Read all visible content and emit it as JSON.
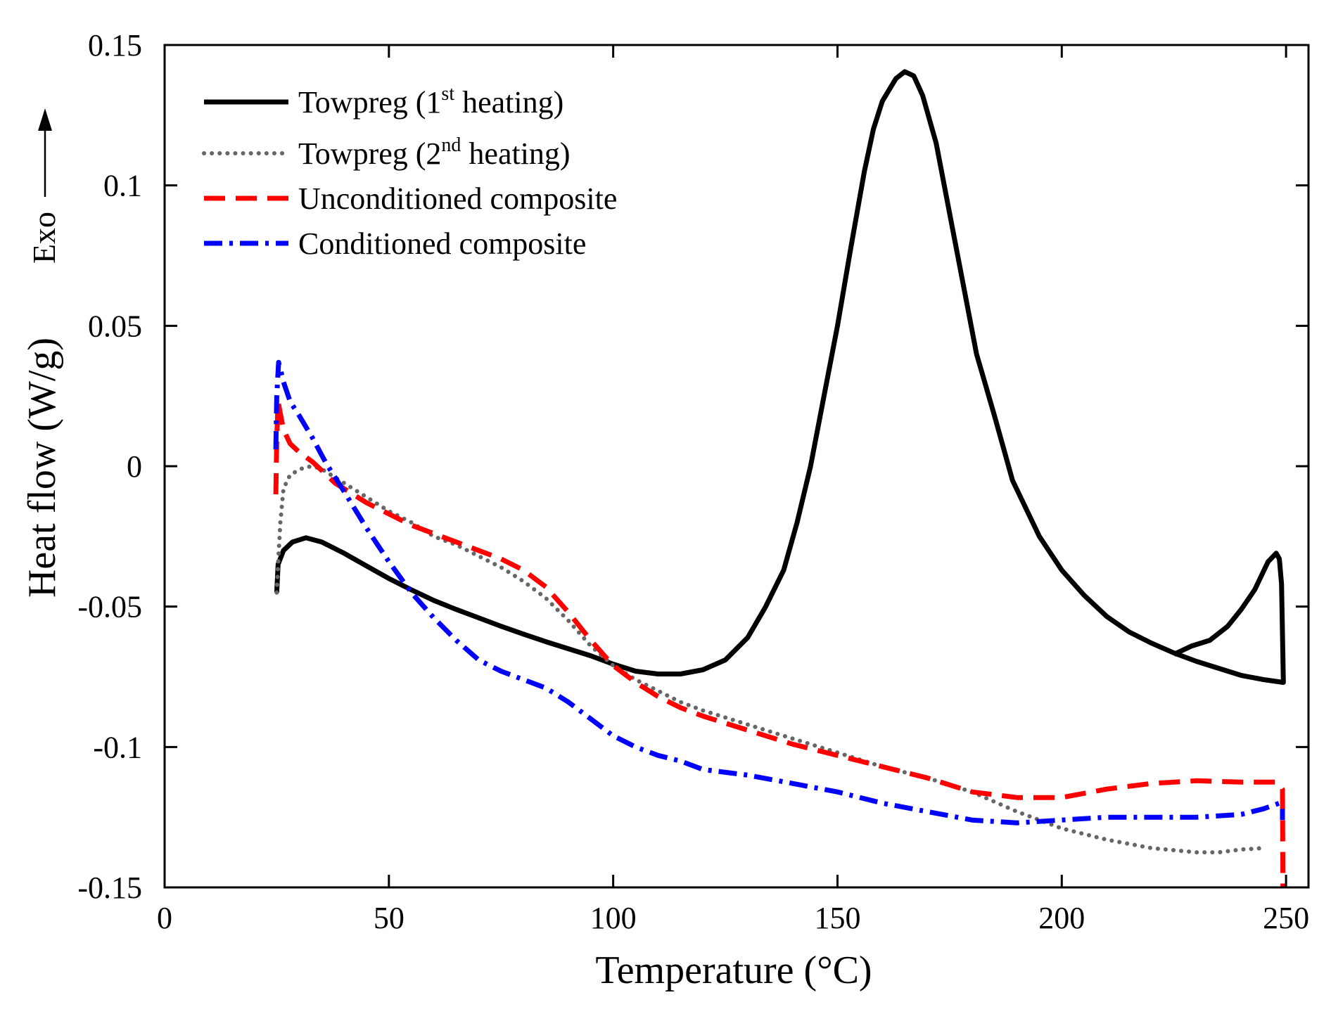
{
  "chart_data": {
    "type": "line",
    "xlabel": "Temperature (°C)",
    "ylabel": "Heat flow (W/g)",
    "exo_label": "Exo",
    "xlim": [
      0,
      255
    ],
    "ylim": [
      -0.15,
      0.15
    ],
    "xticks": [
      0,
      50,
      100,
      150,
      200,
      250
    ],
    "xtick_labels": [
      "0",
      "50",
      "100",
      "150",
      "200",
      "250"
    ],
    "yticks": [
      -0.15,
      -0.1,
      -0.05,
      0,
      0.05,
      0.1,
      0.15
    ],
    "ytick_labels": [
      "-0.15",
      "-0.1",
      "-0.05",
      "0",
      "0.05",
      "0.1",
      "0.15"
    ],
    "grid": false,
    "legend_position": "top-left",
    "series": [
      {
        "name": "Towpreg (1st heating)",
        "legend_main": "Towpreg  (1",
        "legend_sup": "st",
        "legend_tail": " heating)",
        "color": "#000000",
        "style": "solid",
        "points": [
          [
            25.0,
            -0.045
          ],
          [
            25.3,
            -0.035
          ],
          [
            26.5,
            -0.03
          ],
          [
            28.5,
            -0.027
          ],
          [
            31.5,
            -0.0255
          ],
          [
            35,
            -0.027
          ],
          [
            40,
            -0.031
          ],
          [
            45,
            -0.0355
          ],
          [
            50,
            -0.04
          ],
          [
            55,
            -0.044
          ],
          [
            60,
            -0.0478
          ],
          [
            65,
            -0.051
          ],
          [
            70,
            -0.054
          ],
          [
            75,
            -0.057
          ],
          [
            80,
            -0.0598
          ],
          [
            85,
            -0.0625
          ],
          [
            90,
            -0.065
          ],
          [
            95,
            -0.0675
          ],
          [
            100,
            -0.0705
          ],
          [
            105,
            -0.073
          ],
          [
            110,
            -0.074
          ],
          [
            115,
            -0.074
          ],
          [
            120,
            -0.0725
          ],
          [
            125,
            -0.069
          ],
          [
            130,
            -0.061
          ],
          [
            134,
            -0.05
          ],
          [
            138,
            -0.037
          ],
          [
            141,
            -0.02
          ],
          [
            144,
            0.0
          ],
          [
            147,
            0.025
          ],
          [
            150,
            0.05
          ],
          [
            153,
            0.078
          ],
          [
            156,
            0.105
          ],
          [
            158,
            0.12
          ],
          [
            160,
            0.13
          ],
          [
            163,
            0.138
          ],
          [
            165,
            0.1405
          ],
          [
            167,
            0.139
          ],
          [
            169,
            0.132
          ],
          [
            172,
            0.115
          ],
          [
            175,
            0.09
          ],
          [
            178,
            0.065
          ],
          [
            181,
            0.04
          ],
          [
            185,
            0.018
          ],
          [
            189,
            -0.005
          ],
          [
            195,
            -0.025
          ],
          [
            200,
            -0.037
          ],
          [
            205,
            -0.046
          ],
          [
            210,
            -0.0535
          ],
          [
            215,
            -0.059
          ],
          [
            220,
            -0.063
          ],
          [
            225,
            -0.0665
          ],
          [
            230,
            -0.0695
          ],
          [
            235,
            -0.072
          ],
          [
            240,
            -0.0745
          ],
          [
            245,
            -0.076
          ],
          [
            249.4,
            -0.077
          ],
          [
            249.0,
            -0.042
          ],
          [
            248.5,
            -0.033
          ],
          [
            247.8,
            -0.031
          ],
          [
            246,
            -0.034
          ],
          [
            243,
            -0.044
          ],
          [
            240,
            -0.051
          ],
          [
            237,
            -0.057
          ],
          [
            233,
            -0.062
          ],
          [
            229,
            -0.064
          ],
          [
            225,
            -0.067
          ]
        ]
      },
      {
        "name": "Towpreg (2nd heating)",
        "legend_main": "Towpreg  (2",
        "legend_sup": "nd",
        "legend_tail": " heating)",
        "color": "#666666",
        "style": "dotted",
        "points": [
          [
            25.0,
            -0.045
          ],
          [
            25.3,
            -0.035
          ],
          [
            25.8,
            -0.02
          ],
          [
            26.5,
            -0.008
          ],
          [
            28,
            -0.003
          ],
          [
            31,
            -0.0005
          ],
          [
            33,
            0.0
          ],
          [
            35,
            -0.001
          ],
          [
            40,
            -0.006
          ],
          [
            45,
            -0.011
          ],
          [
            50,
            -0.016
          ],
          [
            55,
            -0.02
          ],
          [
            60,
            -0.025
          ],
          [
            65,
            -0.028
          ],
          [
            70,
            -0.032
          ],
          [
            75,
            -0.036
          ],
          [
            80,
            -0.041
          ],
          [
            85,
            -0.047
          ],
          [
            90,
            -0.055
          ],
          [
            95,
            -0.064
          ],
          [
            100,
            -0.071
          ],
          [
            105,
            -0.076
          ],
          [
            110,
            -0.08
          ],
          [
            115,
            -0.084
          ],
          [
            120,
            -0.087
          ],
          [
            130,
            -0.092
          ],
          [
            140,
            -0.097
          ],
          [
            150,
            -0.102
          ],
          [
            160,
            -0.107
          ],
          [
            170,
            -0.111
          ],
          [
            180,
            -0.116
          ],
          [
            190,
            -0.123
          ],
          [
            200,
            -0.129
          ],
          [
            210,
            -0.133
          ],
          [
            220,
            -0.136
          ],
          [
            230,
            -0.1375
          ],
          [
            235,
            -0.1375
          ],
          [
            240,
            -0.1365
          ],
          [
            245,
            -0.136
          ]
        ]
      },
      {
        "name": "Unconditioned composite",
        "legend_main": "Unconditioned composite",
        "color": "#ff0000",
        "style": "dashed",
        "points": [
          [
            24.8,
            -0.01
          ],
          [
            25.0,
            0.01
          ],
          [
            25.3,
            0.023
          ],
          [
            26.5,
            0.013
          ],
          [
            28,
            0.008
          ],
          [
            30,
            0.005
          ],
          [
            33,
            0.0015
          ],
          [
            38,
            -0.006
          ],
          [
            45,
            -0.013
          ],
          [
            50,
            -0.017
          ],
          [
            55,
            -0.021
          ],
          [
            60,
            -0.024
          ],
          [
            65,
            -0.027
          ],
          [
            70,
            -0.03
          ],
          [
            75,
            -0.033
          ],
          [
            80,
            -0.037
          ],
          [
            85,
            -0.043
          ],
          [
            90,
            -0.052
          ],
          [
            95,
            -0.062
          ],
          [
            100,
            -0.071
          ],
          [
            105,
            -0.077
          ],
          [
            110,
            -0.082
          ],
          [
            115,
            -0.086
          ],
          [
            120,
            -0.089
          ],
          [
            130,
            -0.094
          ],
          [
            140,
            -0.099
          ],
          [
            150,
            -0.103
          ],
          [
            160,
            -0.107
          ],
          [
            170,
            -0.111
          ],
          [
            180,
            -0.116
          ],
          [
            190,
            -0.118
          ],
          [
            200,
            -0.118
          ],
          [
            210,
            -0.115
          ],
          [
            220,
            -0.113
          ],
          [
            230,
            -0.112
          ],
          [
            240,
            -0.1125
          ],
          [
            248,
            -0.1125
          ],
          [
            249.2,
            -0.115
          ],
          [
            249.3,
            -0.15
          ]
        ]
      },
      {
        "name": "Conditioned composite",
        "legend_main": "Conditioned composite",
        "color": "#0000ff",
        "style": "dashdot",
        "points": [
          [
            24.8,
            0.006
          ],
          [
            25.0,
            0.025
          ],
          [
            25.4,
            0.037
          ],
          [
            26.5,
            0.03
          ],
          [
            28,
            0.023
          ],
          [
            30,
            0.018
          ],
          [
            33,
            0.01
          ],
          [
            36,
            0.001
          ],
          [
            40,
            -0.009
          ],
          [
            45,
            -0.022
          ],
          [
            50,
            -0.034
          ],
          [
            55,
            -0.045
          ],
          [
            60,
            -0.054
          ],
          [
            65,
            -0.062
          ],
          [
            70,
            -0.069
          ],
          [
            75,
            -0.073
          ],
          [
            80,
            -0.076
          ],
          [
            85,
            -0.079
          ],
          [
            90,
            -0.084
          ],
          [
            95,
            -0.09
          ],
          [
            100,
            -0.096
          ],
          [
            105,
            -0.1
          ],
          [
            110,
            -0.103
          ],
          [
            115,
            -0.105
          ],
          [
            120,
            -0.108
          ],
          [
            130,
            -0.11
          ],
          [
            140,
            -0.113
          ],
          [
            150,
            -0.116
          ],
          [
            160,
            -0.12
          ],
          [
            170,
            -0.123
          ],
          [
            180,
            -0.126
          ],
          [
            190,
            -0.127
          ],
          [
            200,
            -0.126
          ],
          [
            210,
            -0.125
          ],
          [
            220,
            -0.125
          ],
          [
            230,
            -0.125
          ],
          [
            240,
            -0.124
          ],
          [
            245,
            -0.122
          ],
          [
            248.5,
            -0.12
          ],
          [
            249.2,
            -0.122
          ],
          [
            249.2,
            -0.126
          ]
        ]
      }
    ]
  }
}
